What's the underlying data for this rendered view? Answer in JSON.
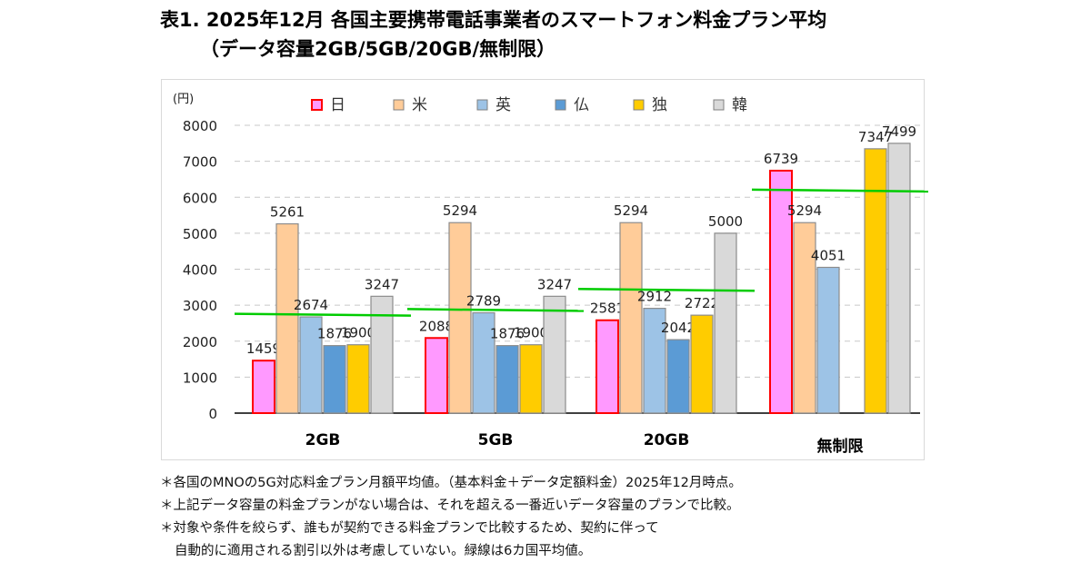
{
  "title": "表1. 2025年12月 各国主要携帯電話事業者のスマートフォン料金プラン平均",
  "subtitle": "（データ容量2GB/5GB/20GB/無制限）",
  "chart_data": {
    "type": "bar",
    "title": "表1. 2025年12月 各国主要携帯電話事業者のスマートフォン料金プラン平均（データ容量2GB/5GB/20GB/無制限）",
    "xlabel": "",
    "ylabel": "(円)",
    "ylim": [
      0,
      8000
    ],
    "yticks": [
      0,
      1000,
      2000,
      3000,
      4000,
      5000,
      6000,
      7000,
      8000
    ],
    "grid": true,
    "legend_position": "top",
    "categories": [
      "2GB",
      "5GB",
      "20GB",
      "無制限"
    ],
    "series": [
      {
        "name": "日",
        "color": "#ff99ff",
        "border": "#ff0000",
        "values": [
          1459,
          2088,
          2581,
          6739
        ]
      },
      {
        "name": "米",
        "color": "#ffcc99",
        "border": "#8c8c8c",
        "values": [
          5261,
          5294,
          5294,
          5294
        ]
      },
      {
        "name": "英",
        "color": "#9dc3e6",
        "border": "#8c8c8c",
        "values": [
          2674,
          2789,
          2912,
          4051
        ]
      },
      {
        "name": "仏",
        "color": "#5b9bd5",
        "border": "#8c8c8c",
        "values": [
          1876,
          1876,
          2042,
          null
        ]
      },
      {
        "name": "独",
        "color": "#ffcc00",
        "border": "#8c8c8c",
        "values": [
          1900,
          1900,
          2722,
          7347
        ]
      },
      {
        "name": "韓",
        "color": "#d9d9d9",
        "border": "#8c8c8c",
        "values": [
          3247,
          3247,
          5000,
          7499
        ]
      }
    ],
    "average_line": {
      "label": "6カ国平均値",
      "color": "#00cc00",
      "values": [
        2736,
        2866,
        3425,
        6186
      ]
    }
  },
  "notes": [
    "＊各国のMNOの5G対応料金プラン月額平均値。（基本料金＋データ定額料金）2025年12月時点。",
    "＊上記データ容量の料金プランがない場合は、それを超える一番近いデータ容量のプランで比較。",
    "＊対象や条件を絞らず、誰もが契約できる料金プランで比較するため、契約に伴って",
    "自動的に適用される割引以外は考慮していない。緑線は6カ国平均値。"
  ]
}
